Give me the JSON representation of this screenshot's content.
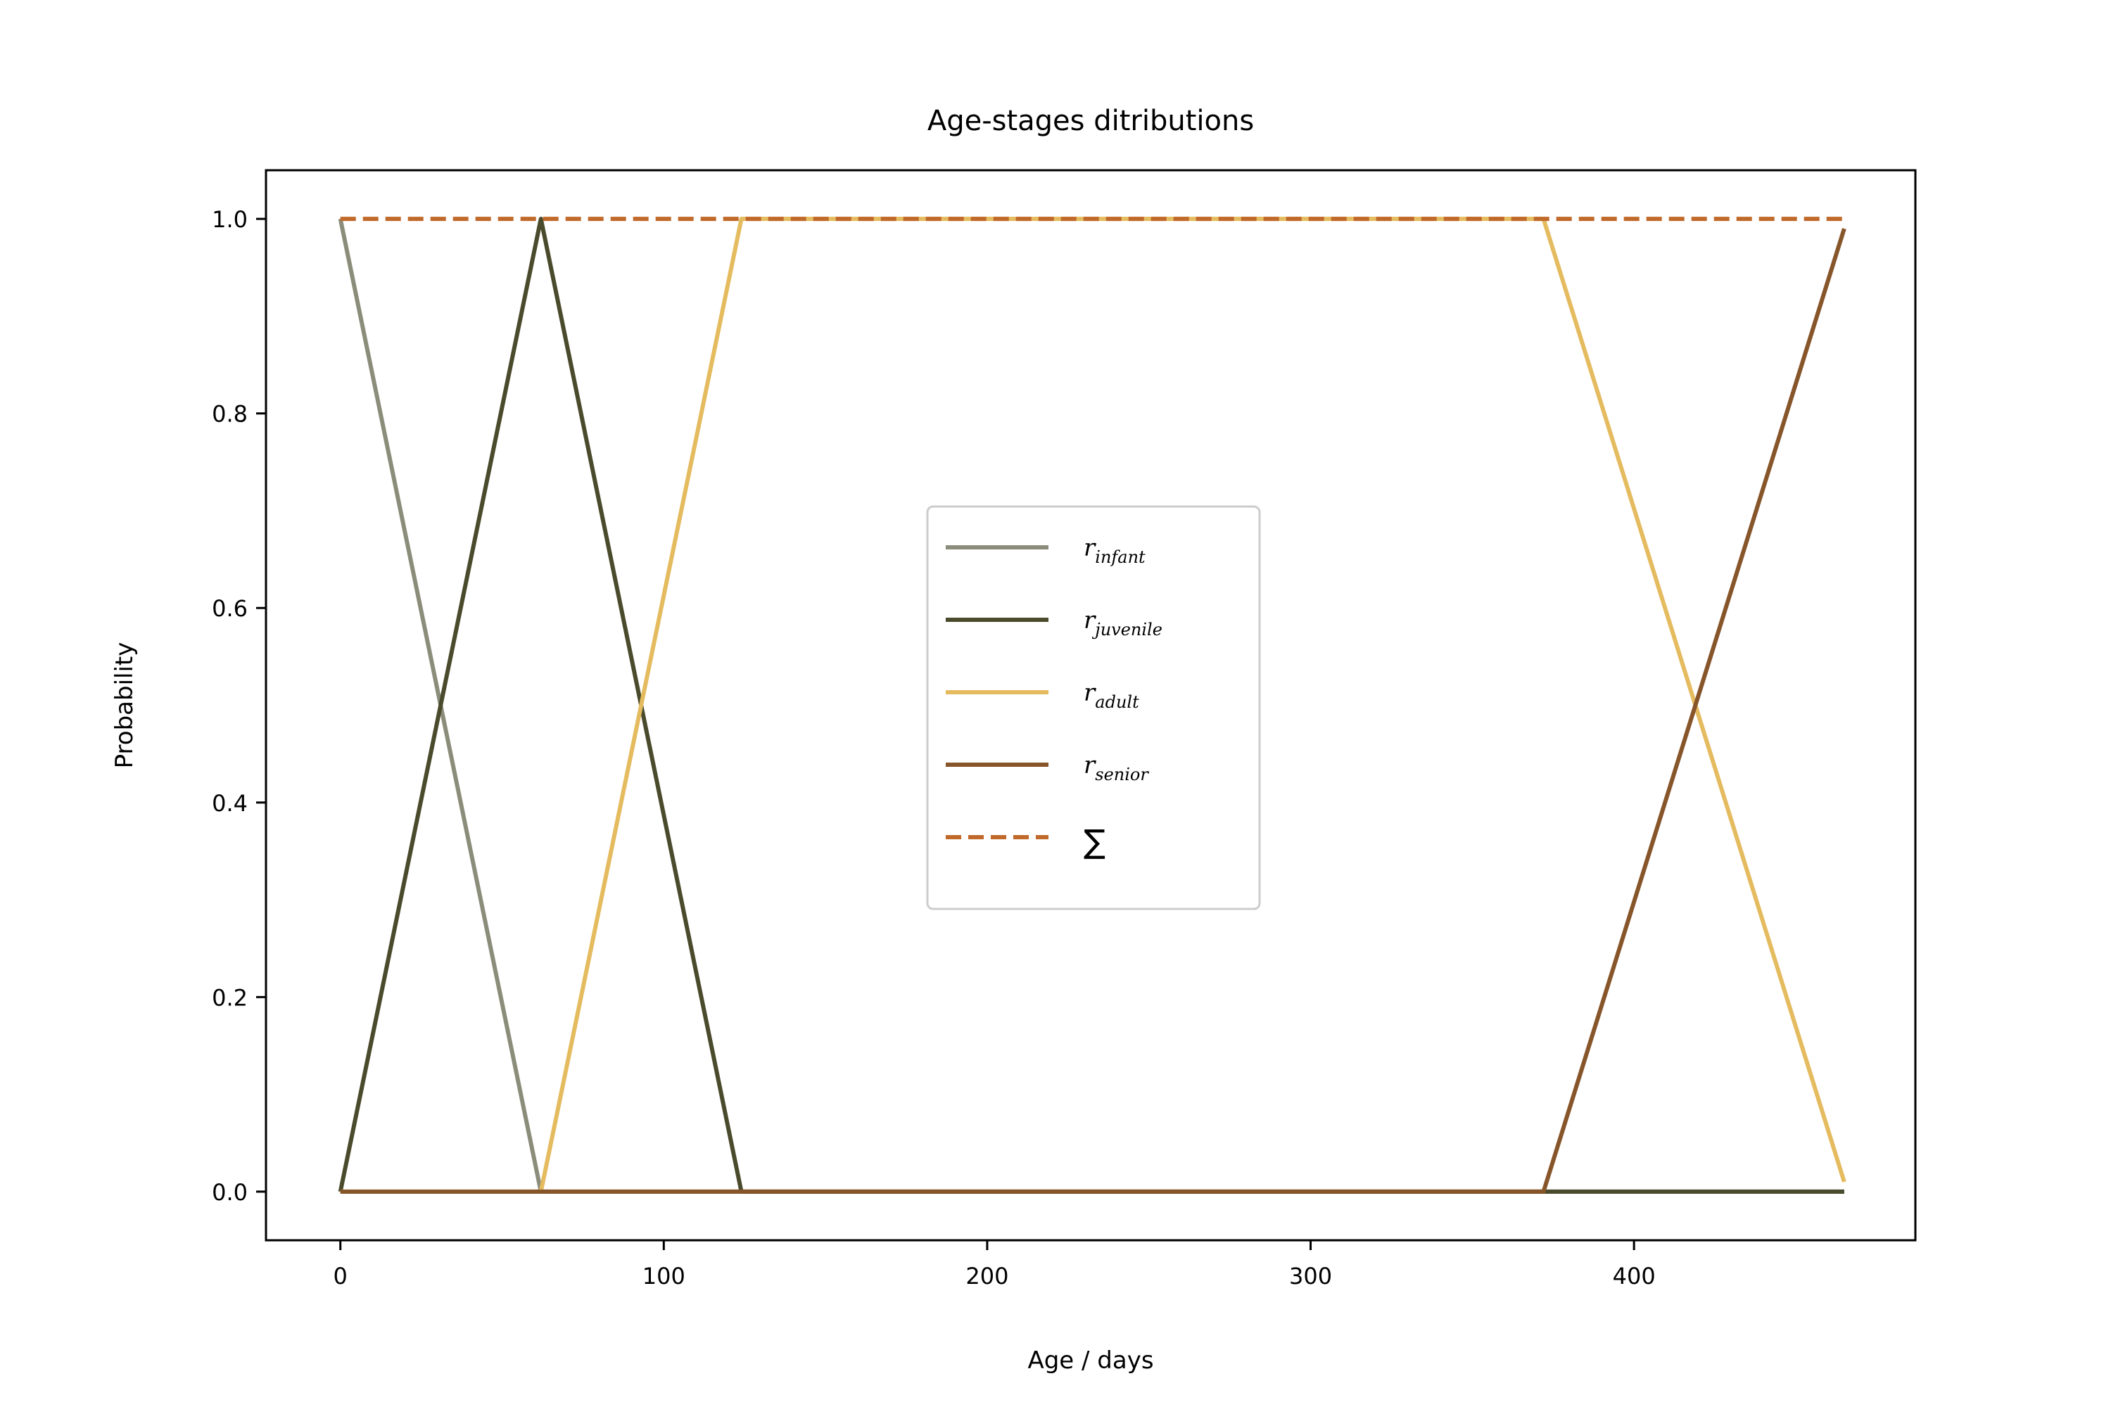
{
  "chart_data": {
    "type": "line",
    "title": "Age-stages ditributions",
    "xlabel": "Age / days",
    "ylabel": "Probability",
    "xlim": [
      -23,
      487
    ],
    "ylim": [
      -0.05,
      1.05
    ],
    "xticks": [
      0,
      100,
      200,
      300,
      400
    ],
    "yticks": [
      0.0,
      0.2,
      0.4,
      0.6,
      0.8,
      1.0
    ],
    "xtick_labels": [
      "0",
      "100",
      "200",
      "300",
      "400"
    ],
    "ytick_labels": [
      "0.0",
      "0.2",
      "0.4",
      "0.6",
      "0.8",
      "1.0"
    ],
    "grid": false,
    "legend_position": "center",
    "series": [
      {
        "key": "infant",
        "legend_base": "r",
        "legend_sub": "infant",
        "color": "#8b8d7a",
        "dash": "solid",
        "points": [
          [
            0,
            1.0
          ],
          [
            62,
            0.0
          ],
          [
            465,
            0.0
          ]
        ]
      },
      {
        "key": "juvenile",
        "legend_base": "r",
        "legend_sub": "juvenile",
        "color": "#4a4a2c",
        "dash": "solid",
        "points": [
          [
            0,
            0.0
          ],
          [
            62,
            1.0
          ],
          [
            124,
            0.0
          ],
          [
            465,
            0.0
          ]
        ]
      },
      {
        "key": "adult",
        "legend_base": "r",
        "legend_sub": "adult",
        "color": "#e5bb5f",
        "dash": "solid",
        "points": [
          [
            0,
            0.0
          ],
          [
            62,
            0.0
          ],
          [
            124,
            1.0
          ],
          [
            372,
            1.0
          ],
          [
            465,
            0.01
          ]
        ]
      },
      {
        "key": "senior",
        "legend_base": "r",
        "legend_sub": "senior",
        "color": "#87552a",
        "dash": "solid",
        "points": [
          [
            0,
            0.0
          ],
          [
            372,
            0.0
          ],
          [
            465,
            0.99
          ]
        ]
      },
      {
        "key": "sum",
        "legend_base": "∑",
        "legend_sub": "",
        "color": "#c0692a",
        "dash": "dashed",
        "points": [
          [
            0,
            1.0
          ],
          [
            465,
            1.0
          ]
        ]
      }
    ]
  }
}
